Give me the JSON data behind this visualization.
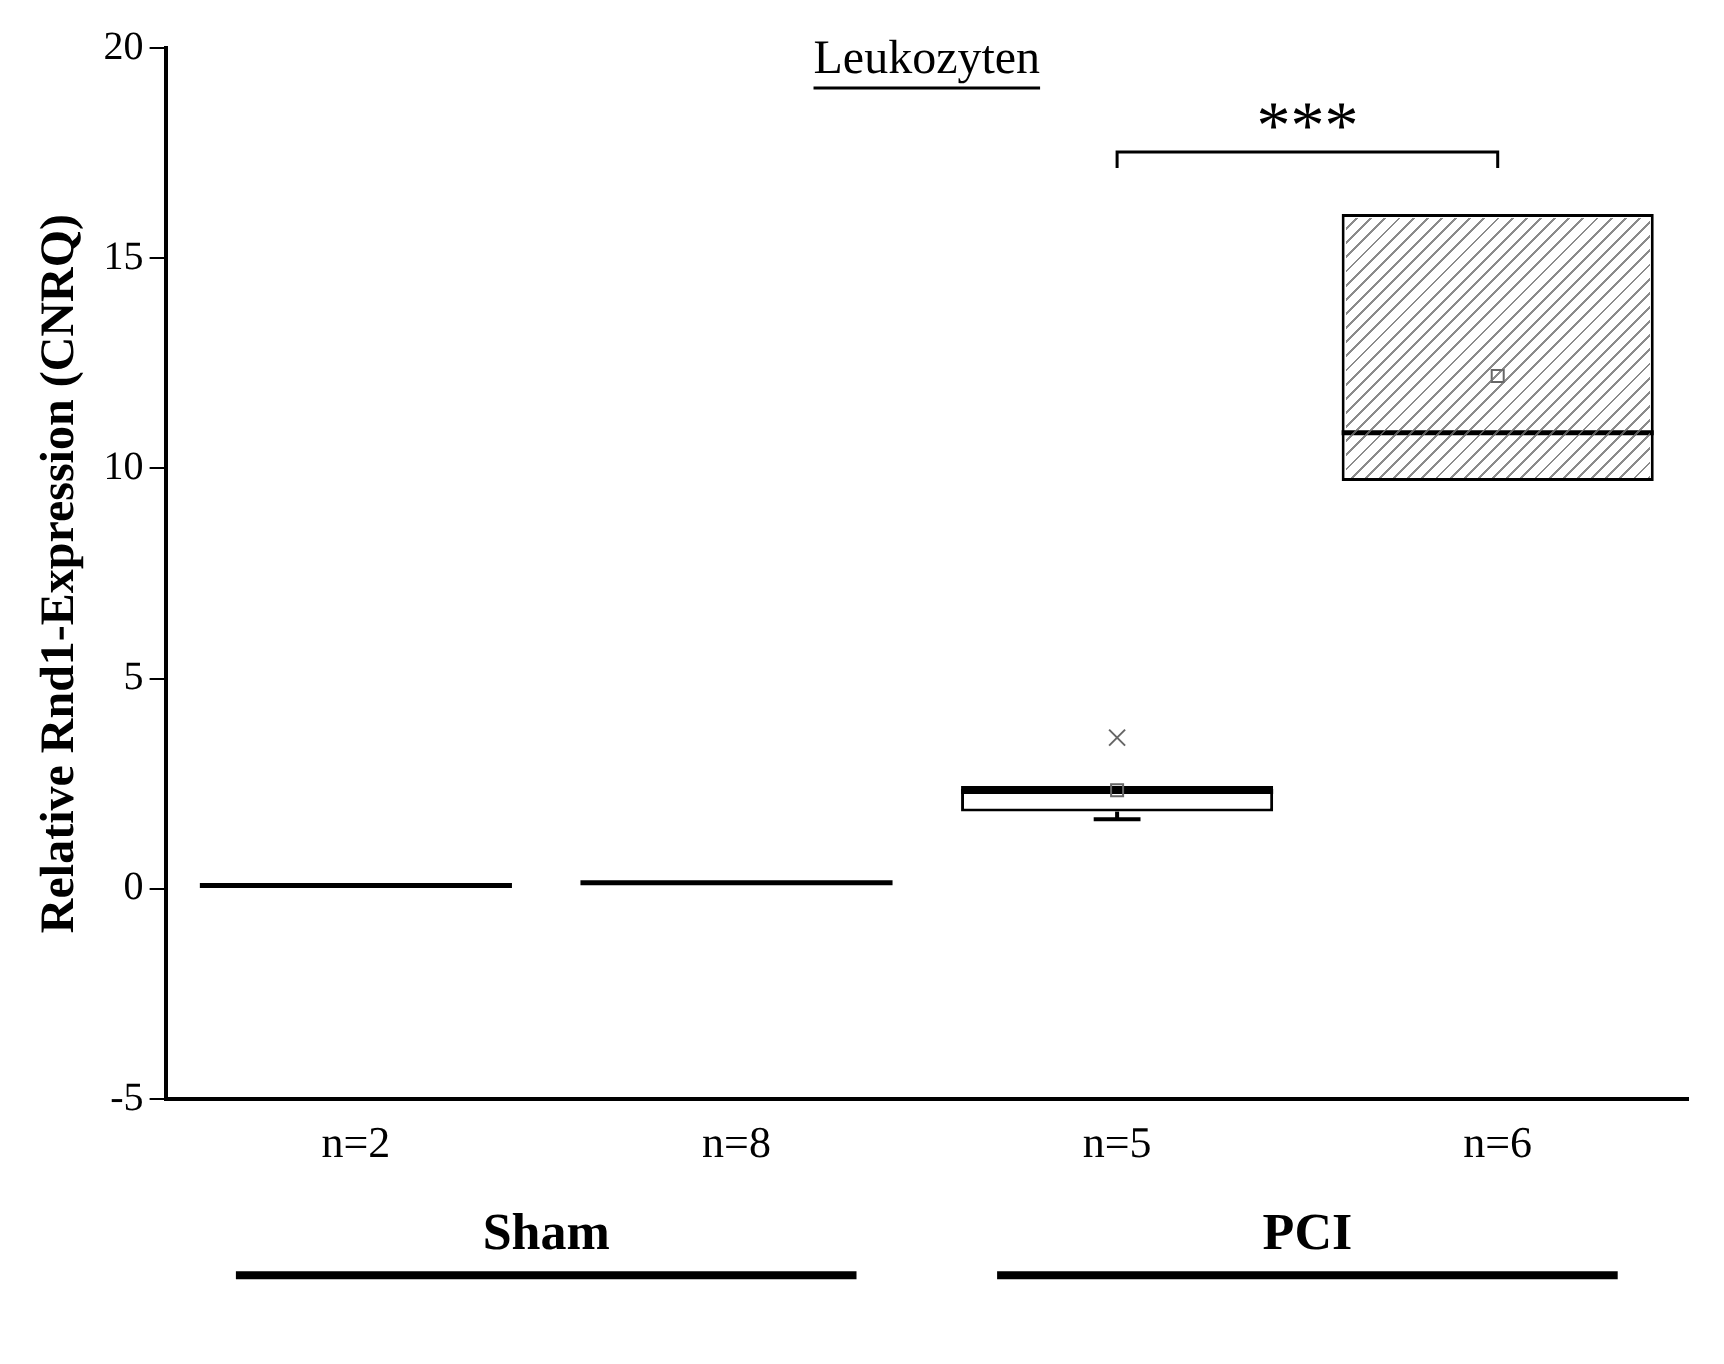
{
  "chart_data": {
    "type": "box",
    "title": "Leukozyten",
    "ylabel": "Relative Rnd1-Expression (CNRQ)",
    "categories": [
      "n=2",
      "n=8",
      "n=5",
      "n=6"
    ],
    "boxes": [
      {
        "low": 0.08,
        "q1": 0.08,
        "median": 0.08,
        "q3": 0.08,
        "high": 0.08
      },
      {
        "low": 0.15,
        "q1": 0.15,
        "median": 0.15,
        "q3": 0.15,
        "high": 0.15
      },
      {
        "low": 1.66,
        "q1": 1.84,
        "median": 2.32,
        "q3": 2.45,
        "high": 2.45,
        "mean": 2.35,
        "outliers": [
          3.6
        ]
      },
      {
        "low": 9.7,
        "q1": 9.7,
        "median": 10.85,
        "q3": 16.05,
        "high": 16.05,
        "mean": 12.2
      }
    ],
    "ylim": [
      -5,
      20
    ],
    "yticks": [
      -5,
      0,
      5,
      10,
      15,
      20
    ],
    "grid": false,
    "legend": false,
    "annotations": [
      "***",
      "Sham",
      "PCI"
    ]
  }
}
